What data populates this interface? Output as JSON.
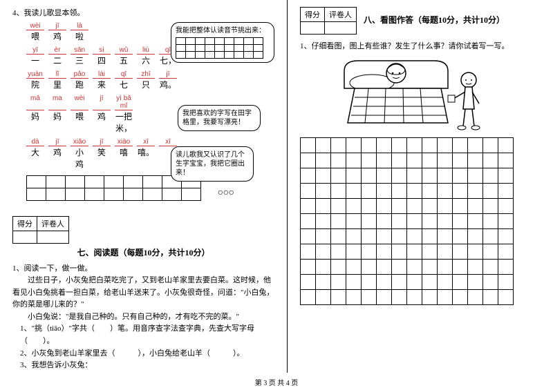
{
  "left": {
    "q4": "4、我读儿歌显本领。",
    "lines": [
      {
        "py": [
          "wèi",
          "jī",
          "là",
          "",
          "",
          "",
          ""
        ],
        "hz": [
          "喂",
          "鸡",
          "啦",
          "",
          "",
          "",
          ""
        ]
      },
      {
        "py": [
          "yī",
          "èr",
          "sān",
          "sì",
          "wǔ",
          "liù",
          "qī"
        ],
        "hz": [
          "一",
          "二",
          "三",
          "四",
          "五",
          "六",
          "七，"
        ]
      },
      {
        "py": [
          "yuàn",
          "lǐ",
          "pǎo",
          "lái",
          "qī",
          "zhī",
          "jī"
        ],
        "hz": [
          "院",
          "里",
          "跑",
          "来",
          "七",
          "只",
          "鸡。"
        ]
      },
      {
        "py": [
          "mā",
          "ma",
          "wèi",
          "jī",
          "yì bǎ mǐ",
          "",
          ""
        ],
        "hz": [
          "妈",
          "妈",
          "喂",
          "鸡",
          "一把米，",
          "",
          ""
        ]
      },
      {
        "py": [
          "dà",
          "jī",
          "xiǎo",
          "jī",
          "xiào",
          "xī",
          "xī"
        ],
        "hz": [
          "大",
          "鸡",
          "小 鸡",
          "笑",
          "嘻",
          "嘻。",
          ""
        ]
      }
    ],
    "bubble1": "我能把整体认读音节挑出来：",
    "bubble2": "我把喜欢的字写在田字格里，我要写漂亮！",
    "bubble3": "读儿歌我又认识了几个生字宝宝，我把它圈出来！",
    "scoreLabels": {
      "score": "得分",
      "grader": "评卷人"
    },
    "section7": "七、阅读题（每题10分，共计10分）",
    "r_q1": "1、阅读一下，做一做。",
    "r_p1": "过些日子，小灰兔把白菜吃完了，又到老山羊家里去要白菜。这时候，他看见小白兔挑着一担白菜，给老山羊送来了。小灰兔很奇怪，问道：\"小白兔，你的菜是哪儿来的？\"",
    "r_p2": "小白兔说：\"是我自己种的。只有自己种的，才有吃不完的菜。\"",
    "r_s1": "1、\"挑（tiāo）\"字共（　　）笔。用音序查字法查字典，先查大写字母（　　）。",
    "r_s2": "2、小灰兔到老山羊家里去（　　　），小白兔给老山羊（　　　）。",
    "r_s3": "3、我想告诉小灰兔："
  },
  "right": {
    "scoreLabels": {
      "score": "得分",
      "grader": "评卷人"
    },
    "section8": "八、看图作答（每题10分，共计10分）",
    "q1": "1、仔细看图，图上有些谁？发生了什么事？请你试着写一写。"
  },
  "footer": "第 3 页  共 4 页",
  "style": {
    "writeGridCols": 14,
    "writeGridRows": 11,
    "tianCols": 9,
    "tianRows": 2,
    "miniCols": 9,
    "miniRows": 3
  }
}
